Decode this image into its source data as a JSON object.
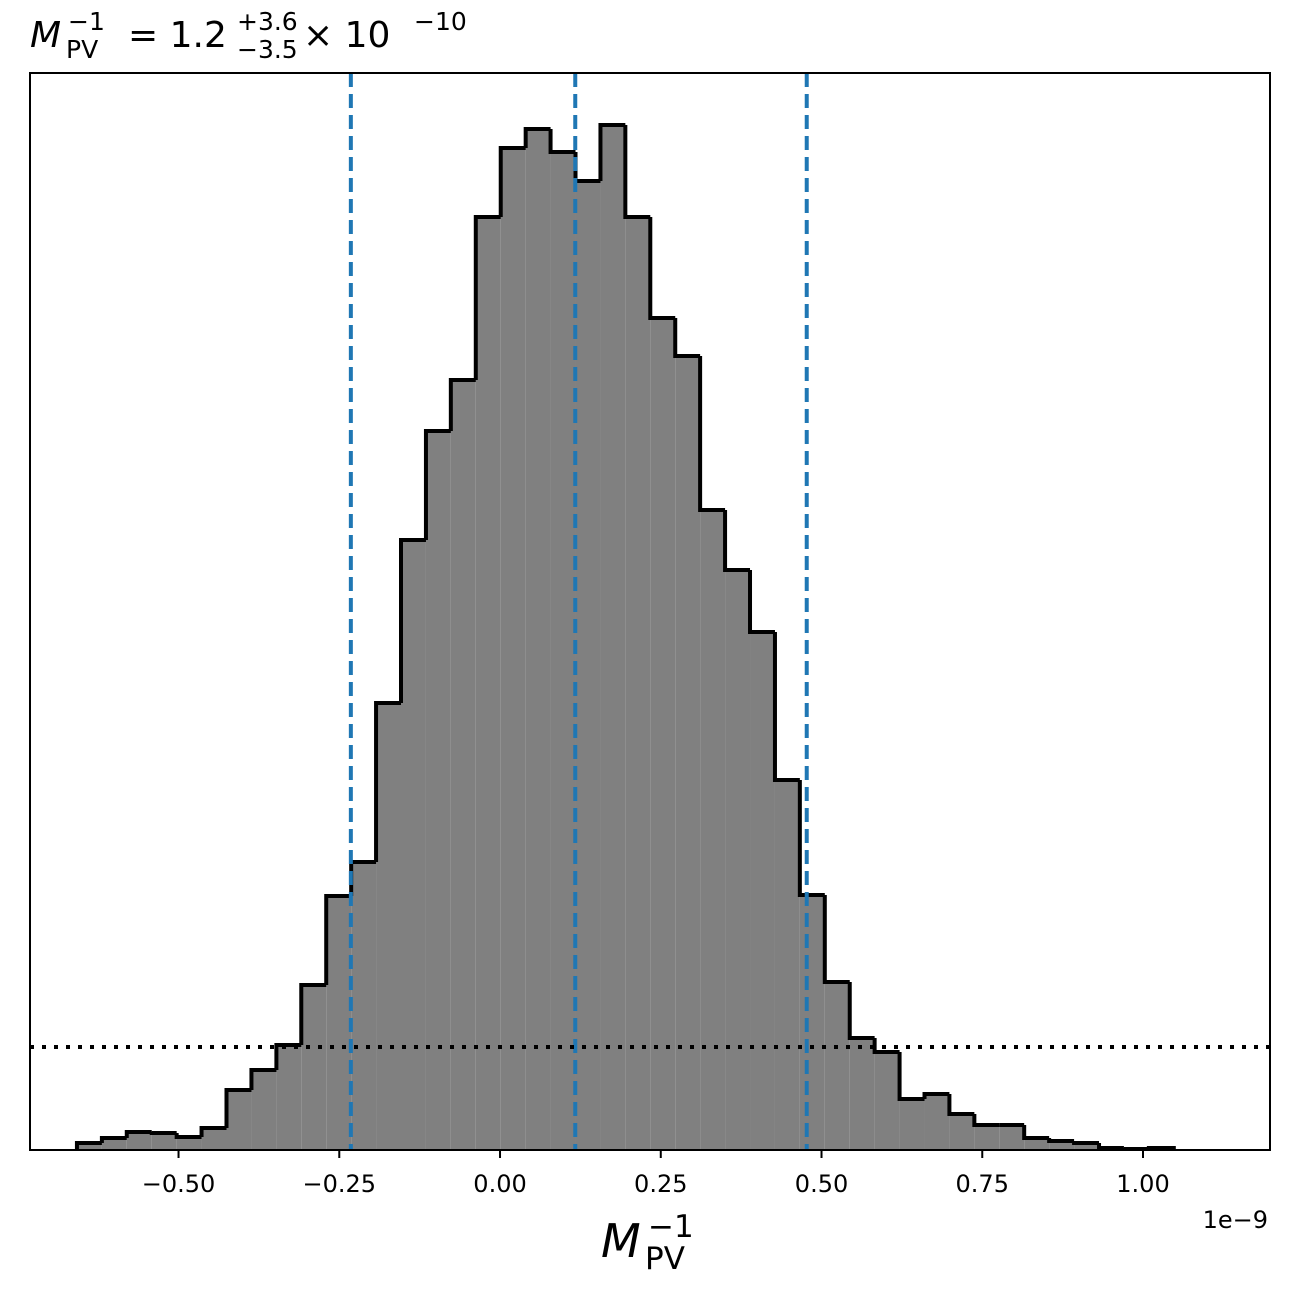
{
  "chart_data": {
    "type": "histogram",
    "title_parts": [
      "M",
      "PV",
      "−1",
      "= 1.2",
      "+3.6",
      "−3.5",
      "× 10",
      "−10"
    ],
    "xlabel_parts": [
      "M",
      "PV",
      "−1"
    ],
    "x_offset_text": "1e−9",
    "bins": [
      -0.658,
      -0.6192,
      -0.5805,
      -0.5417,
      -0.5029,
      -0.4642,
      -0.4254,
      -0.3866,
      -0.3478,
      -0.3091,
      -0.2703,
      -0.2315,
      -0.1928,
      -0.154,
      -0.1152,
      -0.0765,
      -0.0377,
      0.0011,
      0.0399,
      0.0786,
      0.1174,
      0.1562,
      0.1949,
      0.2337,
      0.2725,
      0.3112,
      0.35,
      0.3888,
      0.4276,
      0.4663,
      0.5051,
      0.5439,
      0.5826,
      0.6214,
      0.6602,
      0.6989,
      0.7377,
      0.7765,
      0.8152,
      0.854,
      0.8928,
      0.9316,
      0.9703,
      1.0091,
      1.0479
    ],
    "values": [
      7,
      12,
      18,
      17,
      13,
      22,
      60,
      80,
      105,
      165,
      254,
      288,
      447,
      610,
      719,
      770,
      933,
      1002,
      1021,
      998,
      969,
      1025,
      933,
      832,
      794,
      640,
      580,
      518,
      370,
      255,
      168,
      112,
      98,
      51,
      56,
      36,
      25,
      25,
      12,
      9,
      7,
      2,
      1,
      2
    ],
    "color": "#808080",
    "edge_color": "#000000",
    "xlim": [
      -0.731,
      1.1975
    ],
    "ylim": [
      0,
      1077
    ],
    "xticks": [
      {
        "value": -0.5,
        "label": "−0.50"
      },
      {
        "value": -0.25,
        "label": "−0.25"
      },
      {
        "value": 0,
        "label": "0.00"
      },
      {
        "value": 0.25,
        "label": "0.25"
      },
      {
        "value": 0.5,
        "label": "0.50"
      },
      {
        "value": 0.75,
        "label": "0.75"
      },
      {
        "value": 1.0,
        "label": "1.00"
      }
    ],
    "vlines": [
      -0.232,
      0.117,
      0.477
    ],
    "vline_color": "#1f77b4",
    "hline": 103,
    "hline_color": "#000000"
  }
}
